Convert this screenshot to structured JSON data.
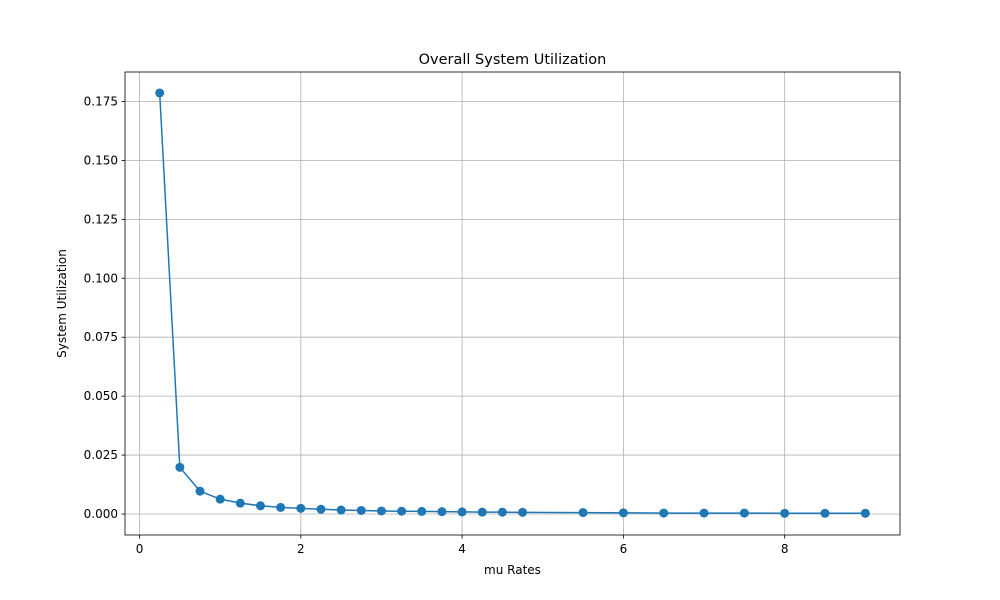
{
  "chart_data": {
    "type": "line",
    "title": "Overall System Utilization",
    "xlabel": "mu Rates",
    "ylabel": "System Utilization",
    "xlim": [
      -0.18,
      9.43
    ],
    "ylim": [
      -0.0089,
      0.1875
    ],
    "xticks": [
      0,
      2,
      4,
      6,
      8
    ],
    "xtick_labels": [
      "0",
      "2",
      "4",
      "6",
      "8"
    ],
    "yticks": [
      0.0,
      0.025,
      0.05,
      0.075,
      0.1,
      0.125,
      0.15,
      0.175
    ],
    "ytick_labels": [
      "0.000",
      "0.025",
      "0.050",
      "0.075",
      "0.100",
      "0.125",
      "0.150",
      "0.175"
    ],
    "grid": true,
    "marker": "circle",
    "series": [
      {
        "color": "#1f77b4",
        "x": [
          0.25,
          0.5,
          0.75,
          1.0,
          1.25,
          1.5,
          1.75,
          2.0,
          2.25,
          2.5,
          2.75,
          3.0,
          3.25,
          3.5,
          3.75,
          4.0,
          4.25,
          4.5,
          4.75,
          5.5,
          6.0,
          6.5,
          7.0,
          7.5,
          8.0,
          8.5,
          9.0
        ],
        "y": [
          0.1786,
          0.0198,
          0.0097,
          0.0063,
          0.0046,
          0.0035,
          0.0028,
          0.0024,
          0.002,
          0.0017,
          0.0015,
          0.0013,
          0.0012,
          0.0011,
          0.001,
          0.0009,
          0.0008,
          0.0008,
          0.0007,
          0.0006,
          0.0005,
          0.0004,
          0.0004,
          0.0004,
          0.0003,
          0.0003,
          0.0003
        ]
      }
    ]
  }
}
